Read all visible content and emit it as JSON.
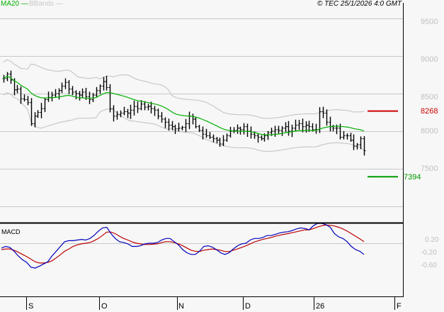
{
  "header": {
    "legend_ma": "MA20 —",
    "legend_bb": "BBands —",
    "copyright": "© TEC 25/1/2026 4:0 GMT"
  },
  "colors": {
    "background": "#f7f7f7",
    "grid": "#c8c8c8",
    "bars": "#000000",
    "ma20": "#00b000",
    "bbands": "#c8c8c8",
    "resistance": "#cc0000",
    "support": "#009900",
    "macd": "#0000bb",
    "signal": "#bb0000"
  },
  "price_axis": {
    "labels": [
      "9500",
      "9000",
      "8500",
      "8000",
      "7500"
    ],
    "resistance_label": "8268",
    "support_label": "7394"
  },
  "macd_panel": {
    "title": "MACD",
    "labels": [
      "0.20",
      "-0.20",
      "-0.60"
    ]
  },
  "x_axis": {
    "labels": [
      "S",
      "O",
      "N",
      "D",
      "26",
      "F"
    ]
  },
  "chart_data": [
    {
      "type": "ohlc",
      "title": "Price with MA20 and Bollinger Bands",
      "ylim": [
        7050,
        9750
      ],
      "yticks": [
        9500,
        9000,
        8500,
        8000,
        7500
      ],
      "grid": true,
      "x_tick_labels": [
        "S",
        "O",
        "N",
        "D",
        "26",
        "F"
      ],
      "series": [
        {
          "name": "Close",
          "values": [
            8700,
            8760,
            8680,
            8550,
            8560,
            8430,
            8420,
            8380,
            8100,
            8200,
            8250,
            8300,
            8420,
            8450,
            8480,
            8500,
            8540,
            8600,
            8650,
            8560,
            8520,
            8500,
            8480,
            8520,
            8460,
            8420,
            8480,
            8540,
            8600,
            8660,
            8580,
            8300,
            8200,
            8220,
            8240,
            8260,
            8240,
            8280,
            8330,
            8300,
            8360,
            8320,
            8330,
            8300,
            8280,
            8200,
            8160,
            8120,
            8080,
            8060,
            8030,
            8040,
            8050,
            8100,
            8200,
            8160,
            8060,
            8010,
            7960,
            7940,
            7920,
            7900,
            7880,
            7830,
            7880,
            7940,
            8000,
            8010,
            8040,
            8020,
            8060,
            8000,
            7960,
            7940,
            7920,
            7900,
            7940,
            7980,
            8000,
            8020,
            8010,
            8040,
            8060,
            8000,
            8040,
            8080,
            8100,
            8060,
            8080,
            8060,
            8020,
            8020,
            8260,
            8240,
            8120,
            8060,
            8040,
            8040,
            7920,
            7940,
            7940,
            7880,
            7800,
            7820,
            7900,
            7740
          ],
          "range_estimate": "bars span approx 7750–8800"
        },
        {
          "name": "MA20",
          "values_start": 8700,
          "values_end": 7990
        },
        {
          "name": "BBands upper",
          "peak": 9010,
          "end": 8280
        },
        {
          "name": "BBands lower",
          "min": 7880,
          "end": 7770
        }
      ],
      "annotations": [
        {
          "type": "hline",
          "value": 8268,
          "label": "8268",
          "color": "#cc0000"
        },
        {
          "type": "hline",
          "value": 7394,
          "label": "7394",
          "color": "#009900"
        }
      ]
    },
    {
      "type": "line",
      "title": "MACD",
      "yticks": [
        0.2,
        -0.2,
        -0.6
      ],
      "series": [
        {
          "name": "MACD",
          "values": [
            -0.35,
            -0.3,
            -0.33,
            -0.45,
            -0.6,
            -0.72,
            -0.8,
            -0.95,
            -0.98,
            -0.92,
            -0.85,
            -0.78,
            -0.6,
            -0.45,
            -0.3,
            -0.15,
            -0.12,
            -0.12,
            -0.1,
            -0.08,
            -0.1,
            -0.05,
            0.05,
            0.18,
            0.28,
            0.3,
            0.1,
            -0.05,
            -0.15,
            -0.18,
            -0.22,
            -0.3,
            -0.3,
            -0.28,
            -0.22,
            -0.2,
            -0.2,
            -0.18,
            -0.1,
            -0.05,
            -0.05,
            -0.15,
            -0.25,
            -0.4,
            -0.5,
            -0.55,
            -0.55,
            -0.45,
            -0.3,
            -0.28,
            -0.32,
            -0.4,
            -0.5,
            -0.55,
            -0.5,
            -0.38,
            -0.28,
            -0.22,
            -0.2,
            -0.1,
            -0.05,
            -0.05,
            -0.02,
            0.04,
            0.04,
            0.08,
            0.12,
            0.15,
            0.16,
            0.2,
            0.25,
            0.28,
            0.26,
            0.22,
            0.35,
            0.42,
            0.42,
            0.38,
            0.3,
            0.1,
            0.0,
            -0.05,
            -0.15,
            -0.3,
            -0.4,
            -0.45,
            -0.55
          ]
        },
        {
          "name": "Signal",
          "values": [
            -0.4,
            -0.38,
            -0.38,
            -0.42,
            -0.48,
            -0.55,
            -0.62,
            -0.7,
            -0.78,
            -0.82,
            -0.82,
            -0.8,
            -0.75,
            -0.66,
            -0.56,
            -0.45,
            -0.38,
            -0.3,
            -0.25,
            -0.22,
            -0.2,
            -0.18,
            -0.12,
            -0.05,
            0.05,
            0.15,
            0.15,
            0.1,
            0.02,
            -0.05,
            -0.1,
            -0.16,
            -0.2,
            -0.22,
            -0.24,
            -0.24,
            -0.23,
            -0.22,
            -0.18,
            -0.15,
            -0.15,
            -0.18,
            -0.22,
            -0.28,
            -0.35,
            -0.42,
            -0.45,
            -0.46,
            -0.42,
            -0.4,
            -0.38,
            -0.4,
            -0.42,
            -0.46,
            -0.46,
            -0.42,
            -0.38,
            -0.33,
            -0.28,
            -0.22,
            -0.16,
            -0.12,
            -0.08,
            -0.05,
            -0.02,
            0.02,
            0.05,
            0.08,
            0.1,
            0.13,
            0.16,
            0.19,
            0.22,
            0.22,
            0.26,
            0.31,
            0.35,
            0.37,
            0.36,
            0.34,
            0.3,
            0.25,
            0.18,
            0.1,
            0.02,
            -0.06,
            -0.15
          ]
        }
      ]
    }
  ]
}
